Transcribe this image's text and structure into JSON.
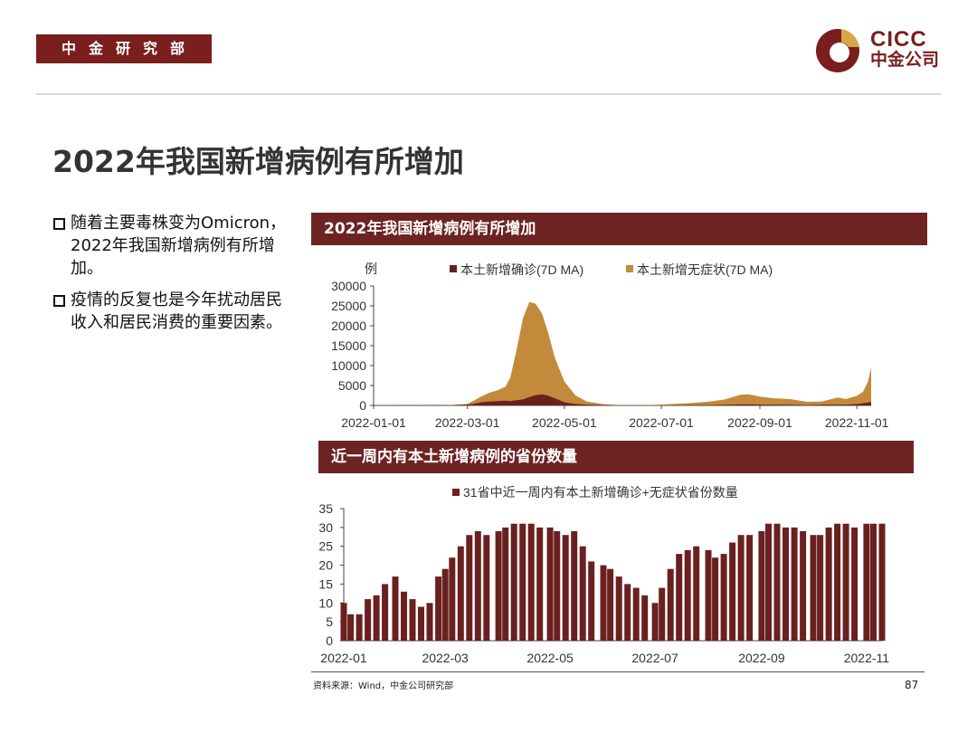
{
  "header": {
    "dept_label": "中金研究部",
    "logo": {
      "en": "CICC",
      "cn": "中金公司"
    }
  },
  "page": {
    "title": "2022年我国新增病例有所增加",
    "bullets": [
      "随着主要毒株变为Omicron，2022年我国新增病例有所增加。",
      "疫情的反复也是今年扰动居民收入和居民消费的重要因素。"
    ],
    "source": "资料来源：Wind，中金公司研究部",
    "page_number": "87"
  },
  "colors": {
    "brand": "#7a1e1e",
    "bar": "#6e2323",
    "confirmed": "#6b2020",
    "asymptomatic": "#c38a3c"
  },
  "chart_data": [
    {
      "type": "area",
      "panel_title": "2022年我国新增病例有所增加",
      "ylabel": "例",
      "ylim": [
        0,
        30000
      ],
      "yticks": [
        0,
        5000,
        10000,
        15000,
        20000,
        25000,
        30000
      ],
      "xticks": [
        "2022-01-01",
        "2022-03-01",
        "2022-05-01",
        "2022-07-01",
        "2022-09-01",
        "2022-11-01"
      ],
      "x": [
        "2022-01-01",
        "2022-02-15",
        "2022-03-01",
        "2022-03-05",
        "2022-03-10",
        "2022-03-15",
        "2022-03-20",
        "2022-03-25",
        "2022-03-28",
        "2022-04-01",
        "2022-04-05",
        "2022-04-09",
        "2022-04-13",
        "2022-04-17",
        "2022-04-21",
        "2022-04-25",
        "2022-05-01",
        "2022-05-08",
        "2022-05-15",
        "2022-05-25",
        "2022-06-05",
        "2022-06-20",
        "2022-07-01",
        "2022-07-10",
        "2022-07-20",
        "2022-08-01",
        "2022-08-10",
        "2022-08-20",
        "2022-08-25",
        "2022-09-01",
        "2022-09-10",
        "2022-09-20",
        "2022-10-01",
        "2022-10-10",
        "2022-10-20",
        "2022-10-25",
        "2022-11-01",
        "2022-11-05",
        "2022-11-08",
        "2022-11-10"
      ],
      "series": [
        {
          "name": "本土新增确诊(7D MA)",
          "color": "#6b2020",
          "values": [
            10,
            0,
            150,
            400,
            800,
            1000,
            1100,
            1200,
            1100,
            1300,
            1500,
            2100,
            2600,
            2800,
            2400,
            1800,
            800,
            350,
            200,
            80,
            30,
            20,
            30,
            50,
            80,
            100,
            150,
            250,
            250,
            200,
            200,
            150,
            100,
            150,
            200,
            200,
            350,
            550,
            750,
            900
          ]
        },
        {
          "name": "本土新增无症状(7D MA)",
          "color": "#c38a3c",
          "values": [
            30,
            0,
            400,
            1200,
            2300,
            3200,
            3800,
            4700,
            7000,
            14000,
            22000,
            26000,
            25500,
            23000,
            18000,
            12000,
            6000,
            2500,
            1000,
            350,
            100,
            80,
            200,
            400,
            600,
            1000,
            1500,
            2700,
            2800,
            2200,
            1800,
            1600,
            900,
            1000,
            2000,
            1600,
            2400,
            3500,
            6000,
            9500
          ]
        }
      ],
      "legend_position": "top"
    },
    {
      "type": "bar",
      "panel_title": "近一周内有本土新增病例的省份数量",
      "ylim": [
        0,
        35
      ],
      "yticks": [
        0,
        5,
        10,
        15,
        20,
        25,
        30,
        35
      ],
      "xticks": [
        "2022-01",
        "2022-03",
        "2022-05",
        "2022-07",
        "2022-09",
        "2022-11"
      ],
      "x": [
        "2022-01-01",
        "2022-01-05",
        "2022-01-10",
        "2022-01-15",
        "2022-01-20",
        "2022-01-25",
        "2022-01-31",
        "2022-02-05",
        "2022-02-10",
        "2022-02-15",
        "2022-02-20",
        "2022-02-25",
        "2022-03-01",
        "2022-03-05",
        "2022-03-10",
        "2022-03-15",
        "2022-03-20",
        "2022-03-25",
        "2022-04-01",
        "2022-04-05",
        "2022-04-10",
        "2022-04-15",
        "2022-04-20",
        "2022-04-25",
        "2022-05-01",
        "2022-05-05",
        "2022-05-10",
        "2022-05-15",
        "2022-05-20",
        "2022-05-25",
        "2022-06-01",
        "2022-06-05",
        "2022-06-10",
        "2022-06-15",
        "2022-06-20",
        "2022-06-25",
        "2022-07-01",
        "2022-07-05",
        "2022-07-10",
        "2022-07-15",
        "2022-07-20",
        "2022-07-25",
        "2022-08-01",
        "2022-08-05",
        "2022-08-10",
        "2022-08-15",
        "2022-08-20",
        "2022-08-25",
        "2022-09-01",
        "2022-09-05",
        "2022-09-10",
        "2022-09-15",
        "2022-09-20",
        "2022-09-25",
        "2022-10-01",
        "2022-10-05",
        "2022-10-10",
        "2022-10-15",
        "2022-10-20",
        "2022-10-25",
        "2022-11-01",
        "2022-11-05",
        "2022-11-10"
      ],
      "series": [
        {
          "name": "31省中近一周内有本土新增确诊+无症状省份数量",
          "color": "#6b2020",
          "values": [
            10,
            7,
            7,
            11,
            12,
            15,
            17,
            13,
            11,
            9,
            10,
            17,
            19,
            22,
            25,
            28,
            29,
            28,
            29,
            30,
            31,
            31,
            31,
            30,
            30,
            29,
            28,
            29,
            25,
            21,
            20,
            19,
            17,
            15,
            14,
            12,
            10,
            14,
            19,
            23,
            24,
            25,
            24,
            22,
            23,
            26,
            28,
            28,
            29,
            31,
            31,
            30,
            30,
            29,
            28,
            28,
            30,
            31,
            31,
            30,
            31,
            31,
            31
          ]
        }
      ],
      "legend_position": "top"
    }
  ]
}
